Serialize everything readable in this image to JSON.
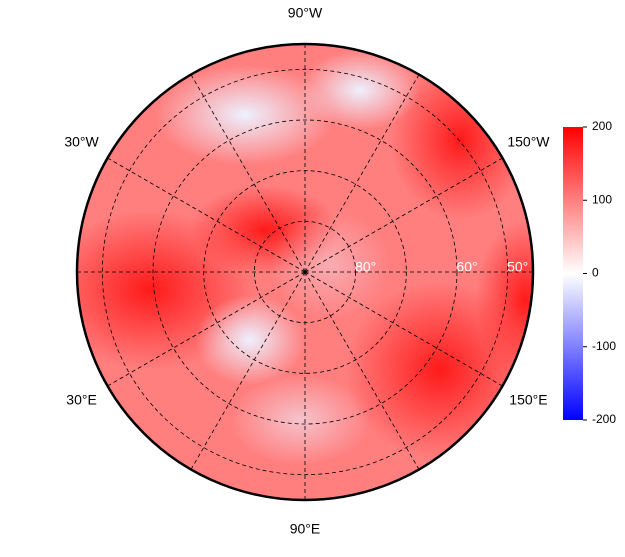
{
  "map": {
    "longitude_labels": [
      {
        "value": -90,
        "label": "90°W"
      },
      {
        "value": -30,
        "label": "30°W"
      },
      {
        "value": -150,
        "label": "150°W"
      },
      {
        "value": 30,
        "label": "30°E"
      },
      {
        "value": 150,
        "label": "150°E"
      },
      {
        "value": 90,
        "label": "90°E"
      }
    ],
    "meridians": [
      0,
      30,
      60,
      90,
      120,
      150,
      180,
      -150,
      -120,
      -90,
      -60,
      -30
    ],
    "parallels": [
      80,
      70,
      60,
      50
    ],
    "latitude_labels": [
      {
        "value": 80,
        "label": "80°"
      },
      {
        "value": 60,
        "label": "60°"
      },
      {
        "value": 50,
        "label": "50°"
      }
    ],
    "latitude_limit": 45,
    "colorbar": {
      "lim": [
        -200,
        200
      ],
      "ticks": [
        200,
        100,
        0,
        -100,
        -200
      ],
      "colors": [
        "#0000ff",
        "#ffffff",
        "#ff0000"
      ]
    }
  }
}
